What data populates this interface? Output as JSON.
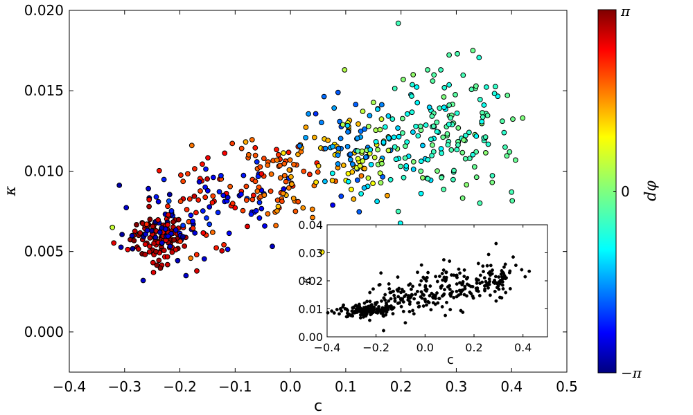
{
  "chart_data": [
    {
      "id": "main",
      "type": "scatter",
      "xlabel": "c",
      "ylabel": "κ",
      "xlim": [
        -0.4,
        0.5
      ],
      "ylim": [
        -0.0025,
        0.02
      ],
      "xticks": [
        -0.4,
        -0.3,
        -0.2,
        -0.1,
        0.0,
        0.1,
        0.2,
        0.3,
        0.4,
        0.5
      ],
      "xtick_labels": [
        "−0.4",
        "−0.3",
        "−0.2",
        "−0.1",
        "0.0",
        "0.1",
        "0.2",
        "0.3",
        "0.4",
        "0.5"
      ],
      "yticks": [
        0.0,
        0.005,
        0.01,
        0.015,
        0.02
      ],
      "ytick_labels": [
        "0.000",
        "0.005",
        "0.010",
        "0.015",
        "0.020"
      ],
      "grid": false,
      "colormap": "jet",
      "color_variable": "dφ",
      "color_range": [
        -3.1416,
        3.1416
      ],
      "clusters": [
        {
          "cx": -0.24,
          "cy": 0.0058,
          "sx": 0.025,
          "sy": 0.0008,
          "dphi": 2.8,
          "n": 110
        },
        {
          "cx": -0.225,
          "cy": 0.0062,
          "sx": 0.04,
          "sy": 0.0013,
          "dphi": -2.8,
          "n": 45
        },
        {
          "cx": -0.15,
          "cy": 0.008,
          "sx": 0.05,
          "sy": 0.0016,
          "dphi": 2.2,
          "n": 55
        },
        {
          "cx": -0.12,
          "cy": 0.0085,
          "sx": 0.06,
          "sy": 0.0016,
          "dphi": -2.3,
          "n": 45
        },
        {
          "cx": -0.05,
          "cy": 0.0095,
          "sx": 0.04,
          "sy": 0.0013,
          "dphi": 1.9,
          "n": 50
        },
        {
          "cx": 0.01,
          "cy": 0.0098,
          "sx": 0.03,
          "sy": 0.0012,
          "dphi": 1.6,
          "n": 30
        },
        {
          "cx": 0.08,
          "cy": 0.011,
          "sx": 0.04,
          "sy": 0.0015,
          "dphi": 1.1,
          "n": 35
        },
        {
          "cx": 0.1,
          "cy": 0.0115,
          "sx": 0.04,
          "sy": 0.0018,
          "dphi": -1.6,
          "n": 45
        },
        {
          "cx": 0.15,
          "cy": 0.0115,
          "sx": 0.035,
          "sy": 0.0013,
          "dphi": 0.4,
          "n": 30
        },
        {
          "cx": 0.2,
          "cy": 0.012,
          "sx": 0.05,
          "sy": 0.0018,
          "dphi": -0.8,
          "n": 60
        },
        {
          "cx": 0.3,
          "cy": 0.0125,
          "sx": 0.05,
          "sy": 0.002,
          "dphi": -0.35,
          "n": 110
        }
      ],
      "extra_points": [
        [
          0.195,
          0.0192
        ],
        [
          0.302,
          0.0173
        ],
        [
          0.33,
          0.0175
        ],
        [
          0.098,
          0.0163
        ],
        [
          0.272,
          0.0163
        ],
        [
          0.222,
          0.016
        ],
        [
          0.248,
          0.0163
        ],
        [
          0.4,
          0.0087
        ],
        [
          0.365,
          0.0093
        ],
        [
          0.42,
          0.0133
        ],
        [
          -0.322,
          0.0065
        ],
        [
          0.195,
          0.0075
        ]
      ]
    },
    {
      "id": "inset",
      "type": "scatter",
      "xlabel": "c",
      "ylabel": "κ",
      "xlim": [
        -0.4,
        0.5
      ],
      "ylim": [
        0.0,
        0.04
      ],
      "xticks": [
        -0.4,
        -0.2,
        0.0,
        0.2,
        0.4
      ],
      "xtick_labels": [
        "−0.4",
        "−0.2",
        "0.0",
        "0.2",
        "0.4"
      ],
      "yticks": [
        0.0,
        0.01,
        0.02,
        0.03,
        0.04
      ],
      "ytick_labels": [
        "0.00",
        "0.01",
        "0.02",
        "0.03",
        "0.04"
      ],
      "grid": false,
      "color": "#000000",
      "clusters": [
        {
          "cx": -0.24,
          "cy": 0.0095,
          "sx": 0.05,
          "sy": 0.0012,
          "n": 140
        },
        {
          "cx": -0.12,
          "cy": 0.0135,
          "sx": 0.06,
          "sy": 0.003,
          "n": 70
        },
        {
          "cx": 0.02,
          "cy": 0.016,
          "sx": 0.06,
          "sy": 0.0035,
          "n": 70
        },
        {
          "cx": 0.15,
          "cy": 0.018,
          "sx": 0.06,
          "sy": 0.0035,
          "n": 70
        },
        {
          "cx": 0.28,
          "cy": 0.0205,
          "sx": 0.05,
          "sy": 0.003,
          "n": 70
        }
      ],
      "extra_points": [
        [
          0.29,
          0.0333
        ],
        [
          0.1,
          0.027
        ],
        [
          -0.18,
          0.0228
        ],
        [
          0.36,
          0.0285
        ]
      ]
    }
  ],
  "colorbar": {
    "label": "dφ",
    "tick_labels": [
      "π",
      "0",
      "−π"
    ],
    "colors": [
      "#00007f",
      "#0000ff",
      "#007fff",
      "#00ffff",
      "#7fff7f",
      "#ffff00",
      "#ff7f00",
      "#ff0000",
      "#7f0000"
    ]
  }
}
